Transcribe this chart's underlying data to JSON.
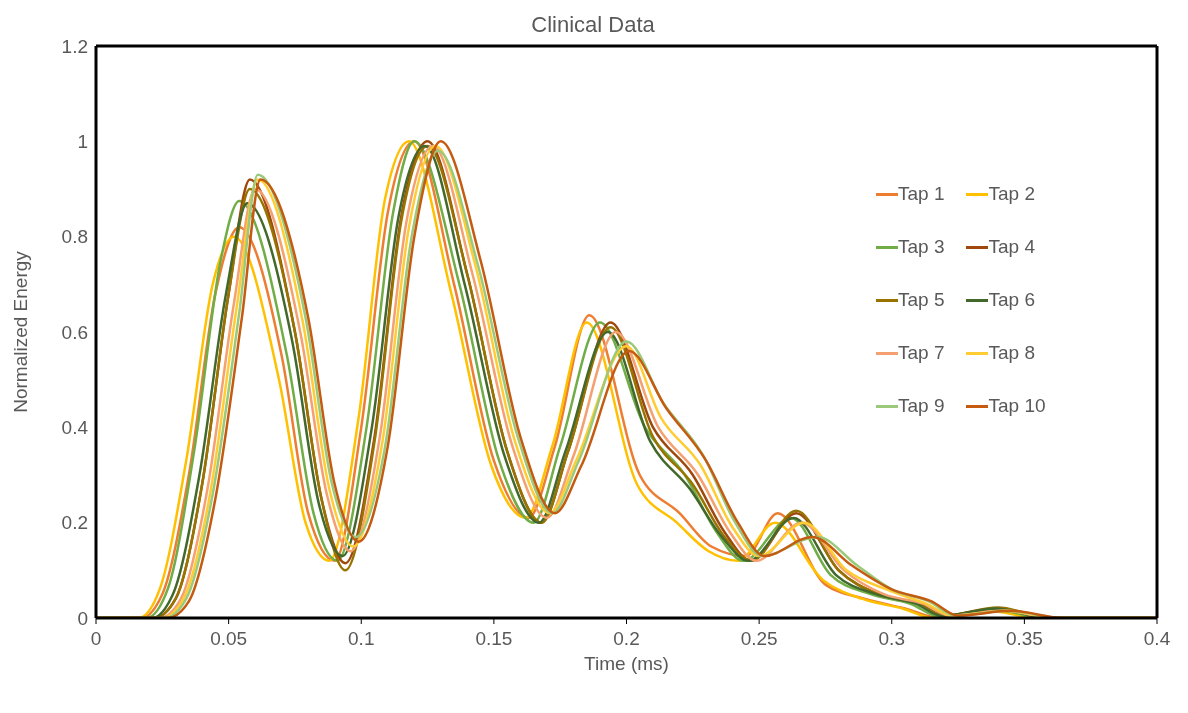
{
  "chart_data": {
    "type": "line",
    "title": "Clinical Data",
    "xlabel": "Time (ms)",
    "ylabel": "Normalized Energy",
    "xlim": [
      0,
      0.4
    ],
    "xticks": [
      0,
      0.05,
      0.1,
      0.15,
      0.2,
      0.25,
      0.3,
      0.35,
      0.4
    ],
    "ylim": [
      0,
      1.2
    ],
    "yticks": [
      0,
      0.2,
      0.4,
      0.6,
      0.8,
      1,
      1.2
    ],
    "grid": false,
    "legend": "right",
    "marker": "none",
    "line_style": "solid",
    "series": [
      {
        "name": "Tap 1",
        "color": "#ed7d31",
        "x": [
          0,
          0.017,
          0.025,
          0.035,
          0.045,
          0.054,
          0.07,
          0.08,
          0.09,
          0.1,
          0.11,
          0.12,
          0.135,
          0.15,
          0.163,
          0.173,
          0.186,
          0.205,
          0.22,
          0.232,
          0.245,
          0.257,
          0.275,
          0.29,
          0.305,
          0.318,
          0.338,
          0.358,
          0.4
        ],
        "values": [
          0,
          0,
          0.05,
          0.3,
          0.68,
          0.82,
          0.55,
          0.22,
          0.12,
          0.4,
          0.85,
          1.0,
          0.7,
          0.33,
          0.21,
          0.36,
          0.635,
          0.3,
          0.22,
          0.15,
          0.13,
          0.22,
          0.07,
          0.04,
          0.02,
          0,
          0.015,
          0,
          0
        ]
      },
      {
        "name": "Tap 2",
        "color": "#ffc000",
        "x": [
          0,
          0.016,
          0.024,
          0.034,
          0.044,
          0.052,
          0.069,
          0.079,
          0.088,
          0.099,
          0.109,
          0.118,
          0.134,
          0.149,
          0.162,
          0.172,
          0.185,
          0.204,
          0.219,
          0.231,
          0.242,
          0.256,
          0.274,
          0.289,
          0.304,
          0.316,
          0.336,
          0.356,
          0.4
        ],
        "values": [
          0,
          0,
          0.06,
          0.33,
          0.7,
          0.8,
          0.5,
          0.2,
          0.12,
          0.42,
          0.88,
          1.0,
          0.68,
          0.32,
          0.21,
          0.36,
          0.62,
          0.28,
          0.2,
          0.14,
          0.12,
          0.2,
          0.08,
          0.04,
          0.02,
          0,
          0.015,
          0,
          0
        ]
      },
      {
        "name": "Tap 3",
        "color": "#70ad47",
        "x": [
          0,
          0.019,
          0.027,
          0.037,
          0.047,
          0.054,
          0.072,
          0.082,
          0.091,
          0.102,
          0.112,
          0.12,
          0.137,
          0.152,
          0.165,
          0.175,
          0.19,
          0.207,
          0.222,
          0.234,
          0.244,
          0.262,
          0.277,
          0.292,
          0.307,
          0.318,
          0.338,
          0.358,
          0.4
        ],
        "values": [
          0,
          0,
          0.06,
          0.35,
          0.75,
          0.875,
          0.55,
          0.22,
          0.12,
          0.4,
          0.85,
          1.0,
          0.7,
          0.33,
          0.2,
          0.36,
          0.62,
          0.4,
          0.3,
          0.18,
          0.12,
          0.21,
          0.09,
          0.05,
          0.03,
          0.003,
          0.018,
          0,
          0
        ]
      },
      {
        "name": "Tap 4",
        "color": "#9e480e",
        "x": [
          0,
          0.022,
          0.03,
          0.04,
          0.05,
          0.058,
          0.075,
          0.085,
          0.094,
          0.105,
          0.115,
          0.125,
          0.14,
          0.155,
          0.168,
          0.178,
          0.194,
          0.21,
          0.225,
          0.237,
          0.247,
          0.264,
          0.28,
          0.295,
          0.31,
          0.32,
          0.34,
          0.36,
          0.4
        ],
        "values": [
          0,
          0,
          0.04,
          0.28,
          0.68,
          0.92,
          0.6,
          0.25,
          0.115,
          0.38,
          0.84,
          1.0,
          0.72,
          0.35,
          0.2,
          0.35,
          0.62,
          0.4,
          0.3,
          0.18,
          0.12,
          0.22,
          0.1,
          0.05,
          0.03,
          0.005,
          0.02,
          0,
          0
        ]
      },
      {
        "name": "Tap 5",
        "color": "#997300",
        "x": [
          0,
          0.022,
          0.03,
          0.04,
          0.05,
          0.058,
          0.075,
          0.085,
          0.094,
          0.105,
          0.115,
          0.125,
          0.14,
          0.155,
          0.168,
          0.178,
          0.194,
          0.21,
          0.225,
          0.237,
          0.247,
          0.264,
          0.28,
          0.295,
          0.31,
          0.32,
          0.34,
          0.36,
          0.4
        ],
        "values": [
          0,
          0,
          0.04,
          0.28,
          0.68,
          0.9,
          0.6,
          0.25,
          0.1,
          0.37,
          0.83,
          0.99,
          0.72,
          0.35,
          0.2,
          0.35,
          0.61,
          0.38,
          0.28,
          0.17,
          0.12,
          0.225,
          0.1,
          0.05,
          0.03,
          0.005,
          0.022,
          0,
          0
        ]
      },
      {
        "name": "Tap 6",
        "color": "#43682b",
        "x": [
          0,
          0.021,
          0.029,
          0.039,
          0.049,
          0.057,
          0.074,
          0.084,
          0.093,
          0.104,
          0.114,
          0.124,
          0.139,
          0.154,
          0.167,
          0.177,
          0.193,
          0.209,
          0.224,
          0.236,
          0.246,
          0.263,
          0.279,
          0.294,
          0.309,
          0.319,
          0.339,
          0.359,
          0.4
        ],
        "values": [
          0,
          0,
          0.05,
          0.3,
          0.68,
          0.87,
          0.58,
          0.24,
          0.13,
          0.4,
          0.84,
          0.99,
          0.7,
          0.34,
          0.2,
          0.35,
          0.6,
          0.37,
          0.27,
          0.17,
          0.12,
          0.21,
          0.09,
          0.05,
          0.03,
          0.004,
          0.02,
          0,
          0
        ]
      },
      {
        "name": "Tap 7",
        "color": "#f4a070",
        "x": [
          0,
          0.024,
          0.032,
          0.042,
          0.052,
          0.06,
          0.077,
          0.087,
          0.096,
          0.107,
          0.117,
          0.127,
          0.142,
          0.157,
          0.17,
          0.18,
          0.196,
          0.212,
          0.227,
          0.239,
          0.249,
          0.266,
          0.282,
          0.297,
          0.312,
          0.322,
          0.342,
          0.362,
          0.4
        ],
        "values": [
          0,
          0,
          0.04,
          0.27,
          0.66,
          0.9,
          0.6,
          0.26,
          0.14,
          0.38,
          0.83,
          0.99,
          0.72,
          0.36,
          0.21,
          0.34,
          0.6,
          0.4,
          0.3,
          0.18,
          0.12,
          0.2,
          0.1,
          0.05,
          0.03,
          0.005,
          0.015,
          0,
          0
        ]
      },
      {
        "name": "Tap 8",
        "color": "#ffcd33",
        "x": [
          0,
          0.025,
          0.033,
          0.043,
          0.053,
          0.061,
          0.078,
          0.088,
          0.097,
          0.108,
          0.118,
          0.128,
          0.143,
          0.158,
          0.171,
          0.181,
          0.2,
          0.213,
          0.228,
          0.24,
          0.25,
          0.267,
          0.283,
          0.298,
          0.313,
          0.323,
          0.343,
          0.363,
          0.4
        ],
        "values": [
          0,
          0,
          0.04,
          0.26,
          0.65,
          0.92,
          0.62,
          0.27,
          0.15,
          0.37,
          0.82,
          0.99,
          0.74,
          0.37,
          0.22,
          0.33,
          0.57,
          0.42,
          0.32,
          0.19,
          0.13,
          0.2,
          0.1,
          0.06,
          0.03,
          0.005,
          0.015,
          0,
          0
        ]
      },
      {
        "name": "Tap 9",
        "color": "#9bc97b",
        "x": [
          0,
          0.026,
          0.034,
          0.044,
          0.054,
          0.061,
          0.079,
          0.089,
          0.098,
          0.109,
          0.119,
          0.129,
          0.144,
          0.159,
          0.172,
          0.182,
          0.2,
          0.214,
          0.229,
          0.241,
          0.251,
          0.272,
          0.287,
          0.3,
          0.314,
          0.324,
          0.344,
          0.364,
          0.4
        ],
        "values": [
          0,
          0,
          0.04,
          0.26,
          0.64,
          0.93,
          0.63,
          0.28,
          0.17,
          0.36,
          0.8,
          0.98,
          0.74,
          0.38,
          0.22,
          0.33,
          0.58,
          0.45,
          0.34,
          0.2,
          0.13,
          0.17,
          0.11,
          0.06,
          0.035,
          0.005,
          0.015,
          0,
          0
        ]
      },
      {
        "name": "Tap 10",
        "color": "#c55a11",
        "x": [
          0,
          0.027,
          0.035,
          0.045,
          0.055,
          0.062,
          0.08,
          0.09,
          0.099,
          0.11,
          0.12,
          0.13,
          0.145,
          0.16,
          0.173,
          0.183,
          0.201,
          0.215,
          0.23,
          0.242,
          0.252,
          0.27,
          0.285,
          0.3,
          0.315,
          0.325,
          0.345,
          0.365,
          0.4
        ],
        "values": [
          0,
          0,
          0.035,
          0.25,
          0.63,
          0.92,
          0.63,
          0.28,
          0.16,
          0.36,
          0.8,
          1.0,
          0.75,
          0.38,
          0.22,
          0.32,
          0.56,
          0.44,
          0.33,
          0.2,
          0.13,
          0.17,
          0.11,
          0.06,
          0.035,
          0.005,
          0.015,
          0,
          0
        ]
      }
    ]
  }
}
